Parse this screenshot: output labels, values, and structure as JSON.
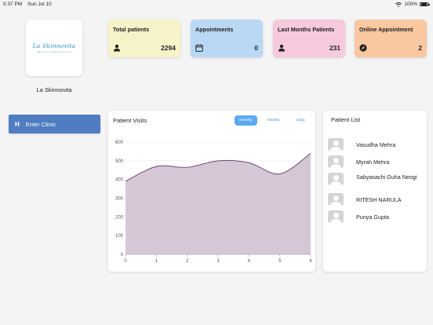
{
  "status_bar": {
    "time": "5:37 PM",
    "date": "Sun Jul 10",
    "battery": "100%"
  },
  "clinic": {
    "logo_text": "La Skinnovita",
    "logo_tagline": "BEAUTY & AESTHETICS",
    "name": "La Skinnovita"
  },
  "sidebar": {
    "enter_clinic_label": "Enter Clinic",
    "enter_icon": "H"
  },
  "stats": [
    {
      "label": "Total patients",
      "value": "2294",
      "icon": "person-icon",
      "color": "#f6f3c8"
    },
    {
      "label": "Appointments",
      "value": "0",
      "icon": "calendar-icon",
      "color": "#b9d8f3"
    },
    {
      "label": "Last Months Patients",
      "value": "231",
      "icon": "person-icon",
      "color": "#f6c9dc"
    },
    {
      "label": "Online Appointment",
      "value": "2",
      "icon": "compass-icon",
      "color": "#f9c8a0"
    }
  ],
  "visits": {
    "title": "Patient Visits",
    "tabs": [
      "Monthly",
      "Weekly",
      "Daily"
    ],
    "active_tab": "Monthly"
  },
  "chart_data": {
    "type": "area",
    "title": "Patient Visits",
    "x": [
      0,
      1,
      2,
      3,
      4,
      5,
      6
    ],
    "values": [
      390,
      470,
      465,
      500,
      490,
      430,
      540
    ],
    "xlim": [
      0,
      6
    ],
    "ylim": [
      0,
      600
    ],
    "yticks": [
      0,
      100,
      200,
      300,
      400,
      500,
      600
    ],
    "xticks": [
      0,
      1,
      2,
      3,
      4,
      5,
      6
    ],
    "grid": true,
    "line_color": "#6e4a78",
    "fill_color": "#d6c7d6"
  },
  "patient_list": {
    "title": "Patient List",
    "items": [
      "Vasudha Mehra",
      "Myrah Mehra",
      "Sabyasachi Guha Neogi",
      "RITESH NARULA",
      "Punya Gupta"
    ]
  }
}
